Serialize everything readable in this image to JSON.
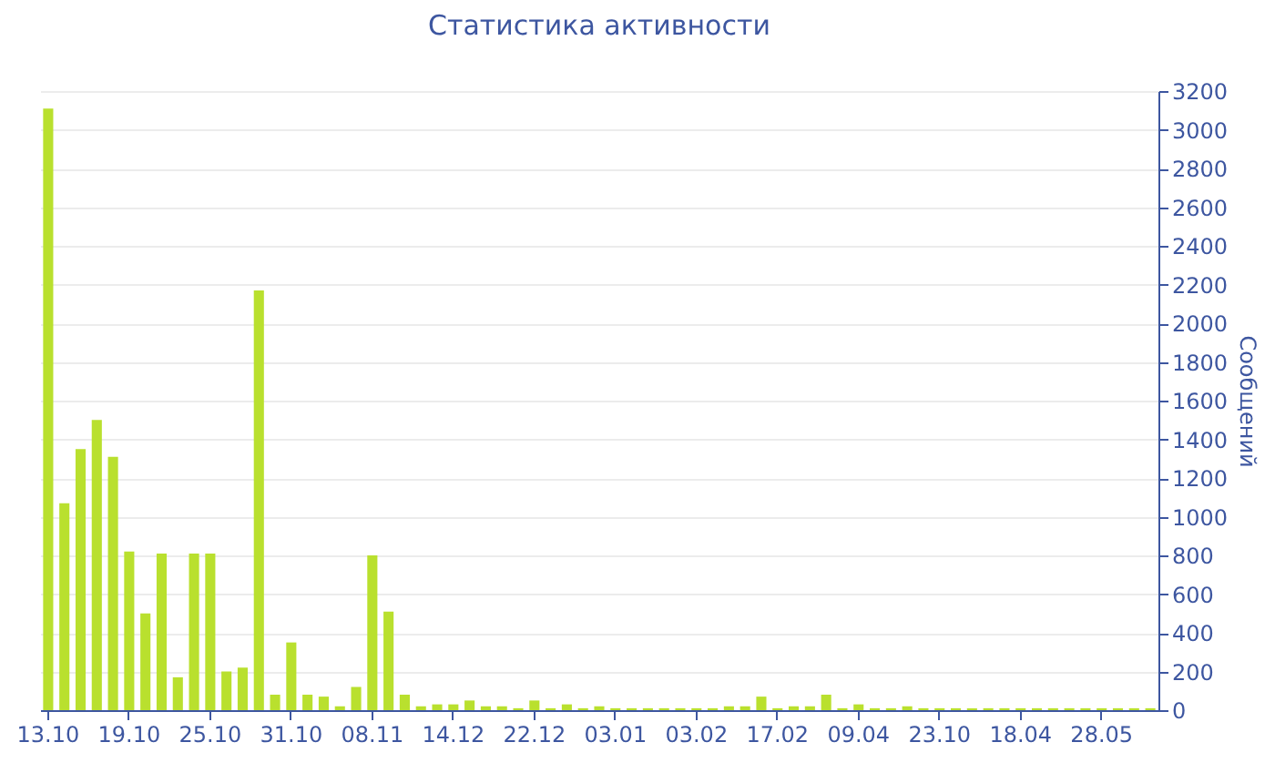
{
  "chart_data": {
    "type": "bar",
    "title": "Статистика активности",
    "ylabel": "Сообщений",
    "categories": [
      "13.10",
      null,
      null,
      null,
      null,
      "19.10",
      null,
      null,
      null,
      null,
      "25.10",
      null,
      null,
      null,
      null,
      "31.10",
      null,
      null,
      null,
      null,
      "08.11",
      null,
      null,
      null,
      null,
      "14.12",
      null,
      null,
      null,
      null,
      "22.12",
      null,
      null,
      null,
      null,
      "03.01",
      null,
      null,
      null,
      null,
      "03.02",
      null,
      null,
      null,
      null,
      "17.02",
      null,
      null,
      null,
      null,
      "09.04",
      null,
      null,
      null,
      null,
      "23.10",
      null,
      null,
      null,
      null,
      "18.04",
      null,
      null,
      null,
      null,
      "28.05",
      null,
      null,
      null
    ],
    "values": [
      3110,
      1070,
      1350,
      1500,
      1310,
      820,
      500,
      810,
      170,
      810,
      810,
      200,
      220,
      2170,
      80,
      350,
      80,
      70,
      20,
      120,
      800,
      510,
      80,
      20,
      30,
      30,
      50,
      20,
      20,
      10,
      50,
      10,
      30,
      10,
      20,
      10,
      10,
      10,
      10,
      10,
      10,
      10,
      20,
      20,
      70,
      10,
      20,
      20,
      80,
      10,
      30,
      10,
      10,
      20,
      10,
      10,
      10,
      10,
      10,
      10,
      10,
      10,
      10,
      10,
      10,
      10,
      10,
      10,
      10
    ],
    "color": "#b9e02e",
    "ylim": [
      0,
      3200
    ],
    "yticks": [
      0,
      200,
      400,
      600,
      800,
      1000,
      1200,
      1400,
      1600,
      1800,
      2000,
      2200,
      2400,
      2600,
      2800,
      3000,
      3200
    ],
    "grid": "y"
  }
}
